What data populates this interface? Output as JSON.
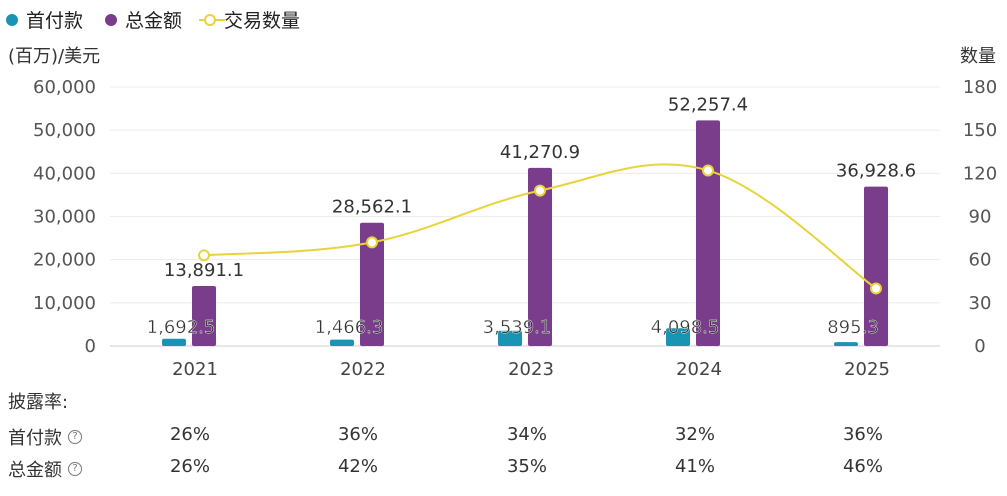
{
  "legend": {
    "items": [
      {
        "label": "首付款",
        "color": "#1a94b3",
        "kind": "dot"
      },
      {
        "label": "总金额",
        "color": "#7a3d8c",
        "kind": "dot"
      },
      {
        "label": "交易数量",
        "color": "#e8d43a",
        "kind": "ring"
      }
    ]
  },
  "axes": {
    "left_unit": "(百万)/美元",
    "right_unit": "数量"
  },
  "chart_data": {
    "type": "bar",
    "categories": [
      "2021",
      "2022",
      "2023",
      "2024",
      "2025"
    ],
    "series": [
      {
        "name": "首付款",
        "type": "bar",
        "axis": "left",
        "color": "#1a94b3",
        "values": [
          1692.5,
          1466.3,
          3539.1,
          4098.5,
          895.3
        ],
        "labels": [
          "1,692.5",
          "1,466.3",
          "3,539.1",
          "4,098.5",
          "895.3"
        ]
      },
      {
        "name": "总金额",
        "type": "bar",
        "axis": "left",
        "color": "#7a3d8c",
        "values": [
          13891.1,
          28562.1,
          41270.9,
          52257.4,
          36928.6
        ],
        "labels": [
          "13,891.1",
          "28,562.1",
          "41,270.9",
          "52,257.4",
          "36,928.6"
        ]
      },
      {
        "name": "交易数量",
        "type": "line",
        "axis": "right",
        "color": "#e8d43a",
        "values": [
          63,
          72,
          108,
          122,
          40
        ]
      }
    ],
    "left_axis": {
      "min": 0,
      "max": 60000,
      "ticks": [
        0,
        10000,
        20000,
        30000,
        40000,
        50000,
        60000
      ],
      "tick_labels": [
        "0",
        "10,000",
        "20,000",
        "30,000",
        "40,000",
        "50,000",
        "60,000"
      ]
    },
    "right_axis": {
      "min": 0,
      "max": 180,
      "ticks": [
        0,
        30,
        60,
        90,
        120,
        150,
        180
      ],
      "tick_labels": [
        "0",
        "30",
        "60",
        "90",
        "120",
        "150",
        "180"
      ]
    },
    "grid": true
  },
  "disclosure": {
    "title": "披露率:",
    "rows": [
      {
        "label": "首付款",
        "values": [
          "26%",
          "36%",
          "34%",
          "32%",
          "36%"
        ]
      },
      {
        "label": "总金额",
        "values": [
          "26%",
          "42%",
          "35%",
          "41%",
          "46%"
        ]
      }
    ]
  },
  "icons": {
    "help": "?"
  }
}
